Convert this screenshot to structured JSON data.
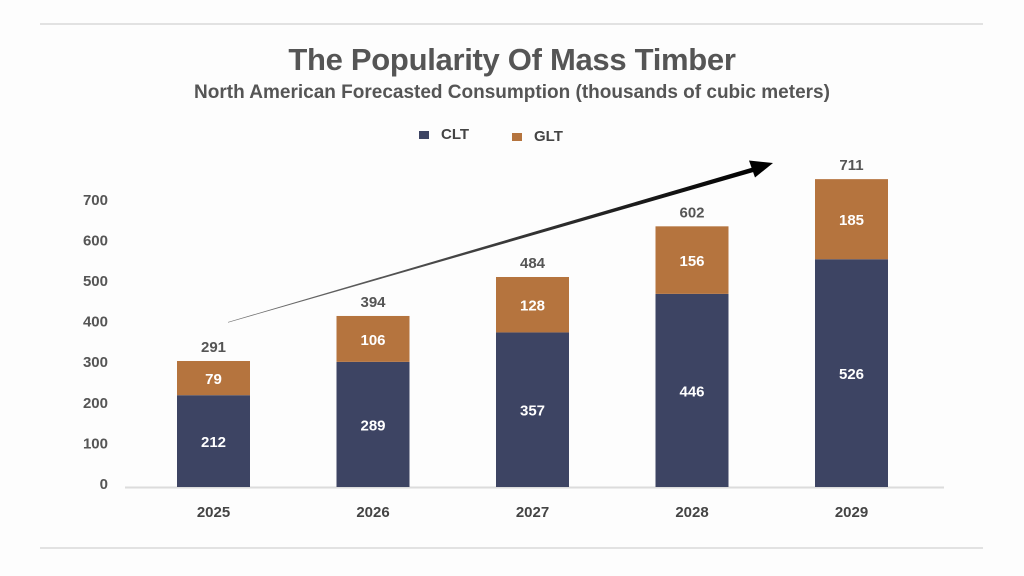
{
  "chart_data": {
    "type": "bar",
    "stacked": true,
    "title": "The Popularity Of Mass Timber",
    "subtitle": "North American Forecasted Consumption (thousands of cubic meters)",
    "xlabel": "",
    "ylabel": "",
    "categories": [
      "2025",
      "2026",
      "2027",
      "2028",
      "2029"
    ],
    "series": [
      {
        "name": "CLT",
        "color": "#3d4463",
        "values": [
          212,
          289,
          357,
          446,
          526
        ]
      },
      {
        "name": "GLT",
        "color": "#b5743e",
        "values": [
          79,
          106,
          128,
          156,
          185
        ]
      }
    ],
    "totals": [
      291,
      394,
      484,
      602,
      711
    ],
    "ylim": [
      0,
      700
    ],
    "yticks": [
      0,
      100,
      200,
      300,
      400,
      500,
      600,
      700
    ],
    "grid": false,
    "legend": "top-center",
    "annotation": "upward trend arrow"
  }
}
